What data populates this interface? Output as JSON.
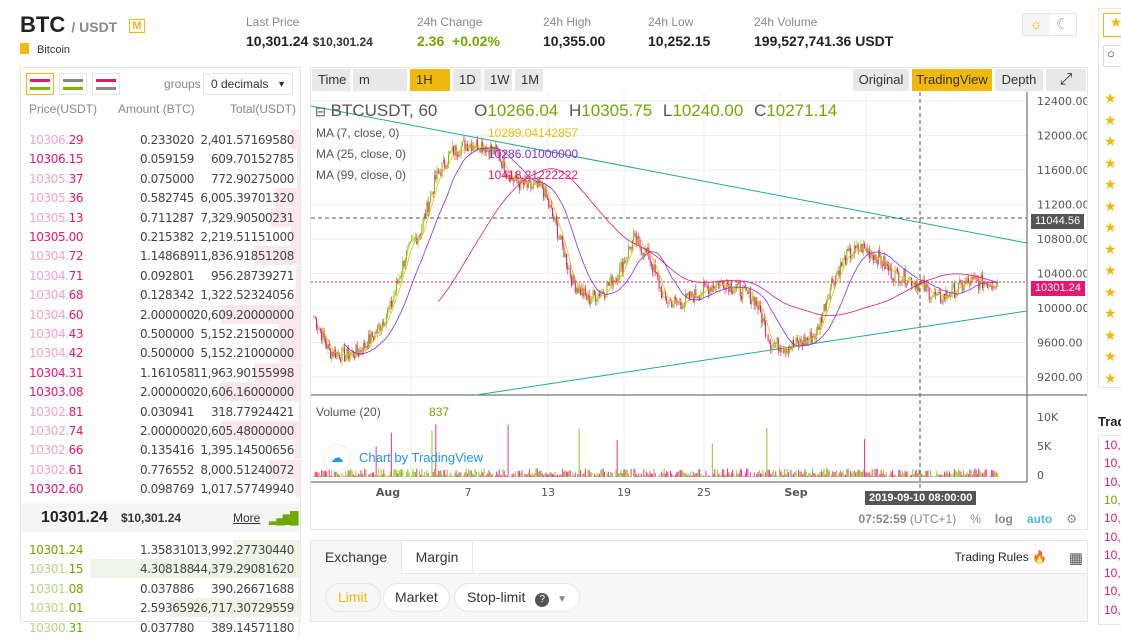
{
  "header": {
    "base": "BTC",
    "quote": "/ USDT",
    "margin_badge": "M",
    "coin_name": "Bitcoin",
    "stats": [
      {
        "label": "Last Price",
        "value": "10,301.24",
        "sub": "$10,301.24"
      },
      {
        "label": "24h Change",
        "value": "2.36  +0.02%"
      },
      {
        "label": "24h High",
        "value": "10,355.00"
      },
      {
        "label": "24h Low",
        "value": "10,252.15"
      },
      {
        "label": "24h Volume",
        "value": "199,527,741.36 USDT"
      }
    ]
  },
  "orderbook": {
    "groups_label": "groups",
    "groups_value": "0 decimals",
    "headers": [
      "Price(USDT)",
      "Amount (BTC)",
      "Total(USDT)"
    ],
    "asks": [
      [
        "10306.",
        "29",
        "0.233020",
        "2,401.57169580",
        0.3
      ],
      [
        "10306.15",
        "",
        "0.059159",
        "609.70152785",
        0.08
      ],
      [
        "10305.",
        "37",
        "0.075000",
        "772.90275000",
        0.1
      ],
      [
        "10305.",
        "36",
        "0.582745",
        "6,005.39701320",
        0.72
      ],
      [
        "10305.",
        "13",
        "0.711287",
        "7,329.90500231",
        0.87
      ],
      [
        "10305.00",
        "",
        "0.215382",
        "2,219.51151000",
        0.27
      ],
      [
        "10304.",
        "72",
        "1.148689",
        "11,836.91851208",
        1.4
      ],
      [
        "10304.",
        "71",
        "0.092801",
        "956.28739271",
        0.12
      ],
      [
        "10304.",
        "68",
        "0.128342",
        "1,322.52324056",
        0.16
      ],
      [
        "10304.",
        "60",
        "2.000000",
        "20,609.20000000",
        2.4
      ],
      [
        "10304.",
        "43",
        "0.500000",
        "5,152.21500000",
        0.63
      ],
      [
        "10304.",
        "42",
        "0.500000",
        "5,152.21000000",
        0.63
      ],
      [
        "10304.31",
        "",
        "1.161058",
        "11,963.90155998",
        1.4
      ],
      [
        "10303.08",
        "",
        "2.000000",
        "20,606.16000000",
        2.4
      ],
      [
        "10302.",
        "81",
        "0.030941",
        "318.77924421",
        0.04
      ],
      [
        "10302.",
        "74",
        "2.000000",
        "20,605.48000000",
        2.4
      ],
      [
        "10302.",
        "66",
        "0.135416",
        "1,395.14500656",
        0.16
      ],
      [
        "10302.",
        "61",
        "0.776552",
        "8,000.51240072",
        0.95
      ],
      [
        "10302.60",
        "",
        "0.098769",
        "1,017.57749940",
        0.12
      ]
    ],
    "mid_price": "10301.24",
    "mid_usd": "$10,301.24",
    "more_label": "More",
    "bids": [
      [
        "10301.24",
        "",
        "1.358310",
        "13,992.27730440",
        1.6
      ],
      [
        "10301.",
        "15",
        "4.308188",
        "44,379.29081620",
        5.0
      ],
      [
        "10301.",
        "08",
        "0.037886",
        "390.26671688",
        0.05
      ],
      [
        "10301.",
        "01",
        "2.593659",
        "26,717.30729559",
        3.1
      ],
      [
        "10300.",
        "31",
        "0.037780",
        "389.14571180",
        0.05
      ]
    ]
  },
  "chart": {
    "toolbar": [
      "Time",
      "m",
      "1H",
      "1D",
      "1W",
      "1M"
    ],
    "active_interval": "1H",
    "views": [
      "Original",
      "TradingView",
      "Depth"
    ],
    "active_view": "TradingView",
    "symbol": "BTCUSDT, 60",
    "ohlc": {
      "O": "10266.04",
      "H": "10305.75",
      "L": "10240.00",
      "C": "10271.14"
    },
    "indicators": [
      {
        "label": "MA (7, close, 0)",
        "value": "10289.04142857",
        "color": "#f0b90b"
      },
      {
        "label": "MA (25, close, 0)",
        "value": "10286.01000000",
        "color": "#8a2be2"
      },
      {
        "label": "MA (99, close, 0)",
        "value": "10418.21222222",
        "color": "#e6186e"
      }
    ],
    "volume_label": "Volume (20)",
    "volume_value": "837",
    "watermark": "Chart by TradingView",
    "crosshair_price": "11044.56",
    "last_price_tag": "10301.24",
    "crosshair_time": "2019-09-10 08:00:00",
    "clock": "07:52:59",
    "tz": "(UTC+1)",
    "bottom_opts": [
      "%",
      "log",
      "auto"
    ]
  },
  "chart_data": {
    "type": "candlestick",
    "ylim": [
      9000,
      12500
    ],
    "y_ticks": [
      "12400.00",
      "12000.00",
      "11600.00",
      "11200.00",
      "10800.00",
      "10400.00",
      "10000.00",
      "9600.00",
      "9200.00"
    ],
    "x_ticks": [
      "Aug",
      "7",
      "13",
      "19",
      "25",
      "Sep"
    ],
    "volume_ticks": [
      "10K",
      "5K",
      "0"
    ],
    "closes": [
      9900,
      9500,
      9450,
      9500,
      9700,
      10000,
      10600,
      10900,
      11500,
      11800,
      11900,
      11900,
      11800,
      11500,
      11400,
      11400,
      10900,
      10300,
      10100,
      10200,
      10400,
      10800,
      10600,
      10100,
      10050,
      10150,
      10250,
      10300,
      10200,
      10100,
      9600,
      9550,
      9600,
      9700,
      10300,
      10600,
      10700,
      10600,
      10400,
      10350,
      10250,
      10100,
      10200,
      10300,
      10300,
      10300
    ],
    "colors": {
      "up": "#7fb800",
      "down": "#e6186e",
      "trendline": "#26a69a"
    }
  },
  "trade": {
    "tabs": [
      "Exchange",
      "Margin"
    ],
    "rules": "Trading Rules",
    "order_types": [
      "Limit",
      "Market",
      "Stop-limit"
    ]
  },
  "right": {
    "trades_title": "Trad",
    "trades": [
      [
        "10,",
        "d"
      ],
      [
        "10,",
        "d"
      ],
      [
        "10,",
        "d"
      ],
      [
        "10,",
        "u"
      ],
      [
        "10,",
        "d"
      ],
      [
        "10,",
        "d"
      ],
      [
        "10,",
        "d"
      ],
      [
        "10,",
        "d"
      ],
      [
        "10,",
        "d"
      ],
      [
        "10,",
        "d"
      ]
    ]
  }
}
